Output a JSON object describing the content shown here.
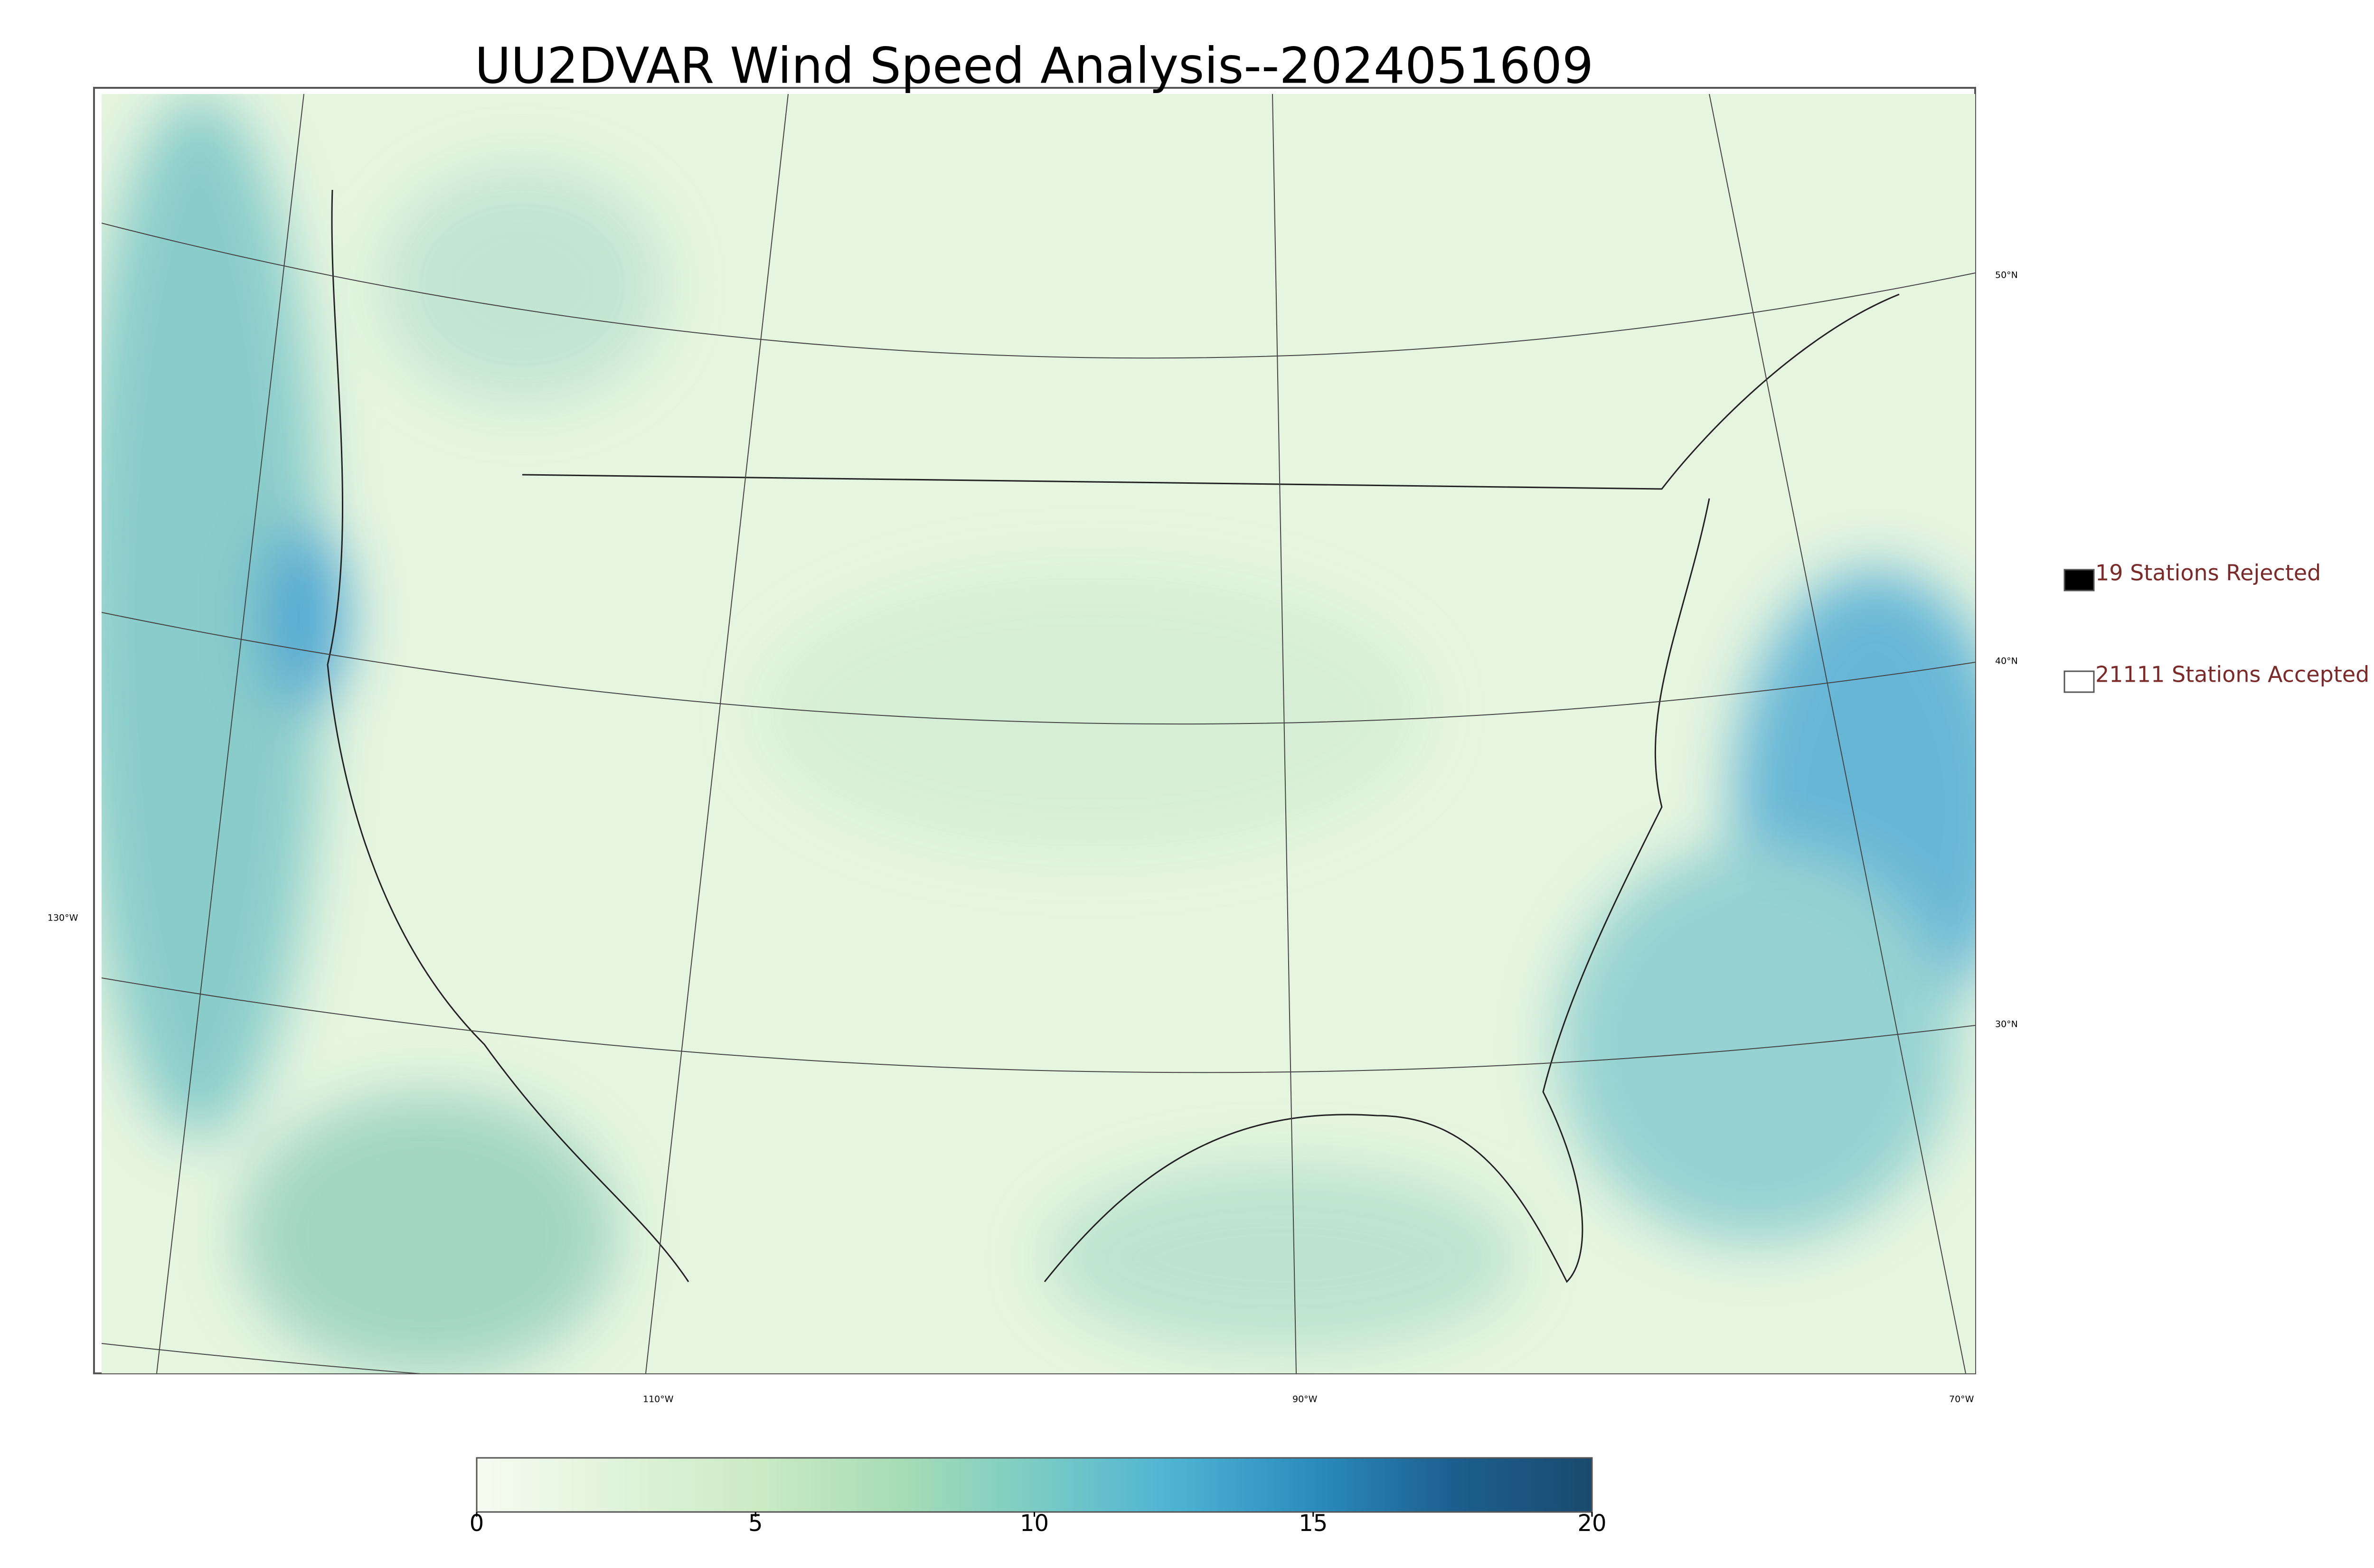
{
  "title": "UU2DVAR Wind Speed Analysis--2024051609",
  "legend": [
    {
      "label": "19 Stations Rejected",
      "color": "#000000"
    },
    {
      "label": "21111 Stations Accepted",
      "color": "#ffffff"
    }
  ],
  "graticule": {
    "latitudes": [
      "50°N",
      "40°N",
      "30°N"
    ],
    "longitudes": [
      "130°W",
      "110°W",
      "90°W",
      "70°W"
    ]
  },
  "colorbar": {
    "range": [
      0,
      20
    ],
    "ticks": [
      0,
      5,
      10,
      15,
      20
    ],
    "colors": [
      "#f7fcf0",
      "#e0f3db",
      "#ccebc5",
      "#a8ddb5",
      "#7bccc4",
      "#4eb3d3",
      "#2b8cbe",
      "#1c5f8f",
      "#1a4a6e"
    ]
  }
}
